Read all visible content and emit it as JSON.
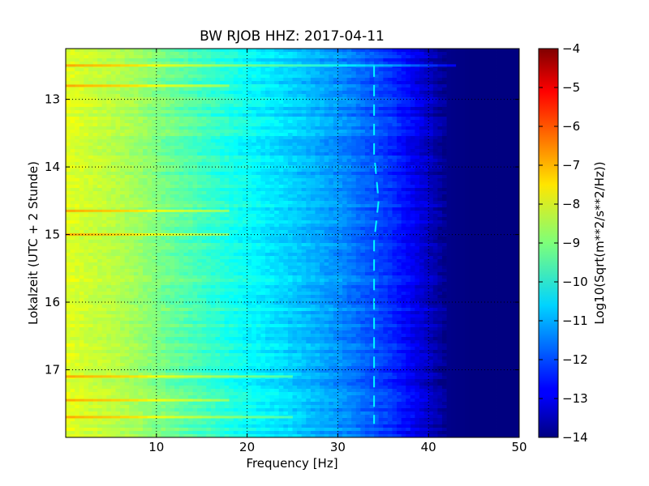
{
  "chart_data": {
    "type": "heatmap",
    "title": "BW RJOB HHZ: 2017-04-11",
    "xlabel": "Frequency [Hz]",
    "ylabel": "Lokalzeit (UTC + 2 Stunde)",
    "xlim": [
      0,
      50
    ],
    "ylim": [
      12.25,
      18.0
    ],
    "x_ticks": [
      10,
      20,
      30,
      40,
      50
    ],
    "y_ticks": [
      13,
      14,
      15,
      16,
      17
    ],
    "y_inverted": true,
    "grid": true,
    "colormap": "jet",
    "colorbar": {
      "label": "Log10(Sqrt(m**2/s**2/Hz))",
      "min": -14,
      "max": -4,
      "ticks": [
        -4,
        -5,
        -6,
        -7,
        -8,
        -9,
        -10,
        -11,
        -12,
        -13,
        -14
      ]
    },
    "spectrum_profile": {
      "frequency_hz": [
        0,
        2,
        5,
        8,
        10,
        15,
        20,
        25,
        30,
        33,
        36,
        38,
        40,
        42,
        45,
        50
      ],
      "log_amplitude": [
        -8.0,
        -8.2,
        -8.4,
        -8.7,
        -9.0,
        -9.6,
        -10.2,
        -10.7,
        -11.3,
        -11.8,
        -12.3,
        -12.8,
        -13.3,
        -13.9,
        -14.0,
        -14.0
      ]
    },
    "narrowband_line": {
      "frequency_hz": [
        34,
        34,
        34.5,
        34,
        34,
        34,
        34,
        34
      ],
      "time": [
        12.5,
        13.8,
        14.5,
        15.1,
        15.8,
        16.5,
        17.2,
        17.8
      ]
    },
    "broadband_events_time": [
      12.5,
      12.8,
      14.65,
      15.0,
      17.1,
      17.45,
      17.7
    ]
  }
}
